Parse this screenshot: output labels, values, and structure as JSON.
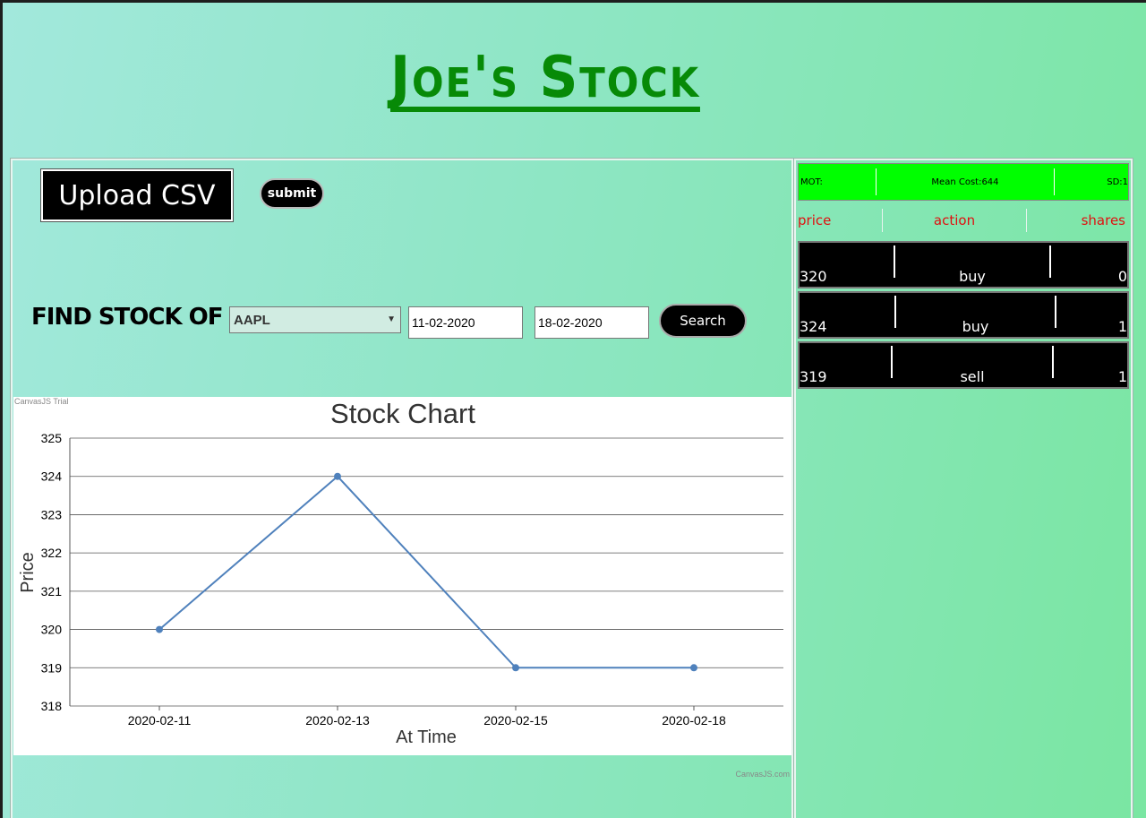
{
  "header": {
    "title": "Joe's Stock"
  },
  "upload": {
    "label": "Upload CSV",
    "submit_label": "submit"
  },
  "search": {
    "label": "FIND STOCK OF",
    "selected_symbol": "AAPL",
    "from_date": "11-02-2020",
    "to_date": "18-02-2020",
    "button_label": "Search"
  },
  "chart_watermark": "CanvasJS Trial",
  "chart_credit": "CanvasJS.com",
  "chart_data": {
    "type": "line",
    "title": "Stock Chart",
    "xlabel": "At Time",
    "ylabel": "Price",
    "categories": [
      "2020-02-11",
      "2020-02-13",
      "2020-02-15",
      "2020-02-18"
    ],
    "values": [
      320,
      324,
      319,
      319
    ],
    "ylim": [
      318,
      325
    ],
    "yticks": [
      "318",
      "319",
      "320",
      "321",
      "322",
      "323",
      "324",
      "325"
    ],
    "grid": true,
    "color": "#4f81bc"
  },
  "stats": {
    "mot_label": "MOT:",
    "mean_cost": "Mean Cost:644",
    "sd": "SD:1"
  },
  "columns": {
    "price": "price",
    "action": "action",
    "shares": "shares"
  },
  "trades": [
    {
      "price": "320",
      "action": "buy",
      "shares": "0"
    },
    {
      "price": "324",
      "action": "buy",
      "shares": "1"
    },
    {
      "price": "319",
      "action": "sell",
      "shares": "1"
    }
  ],
  "colors": {
    "accent": "#078a07",
    "stats_bg": "#00ff00",
    "header_text": "#e01010"
  }
}
